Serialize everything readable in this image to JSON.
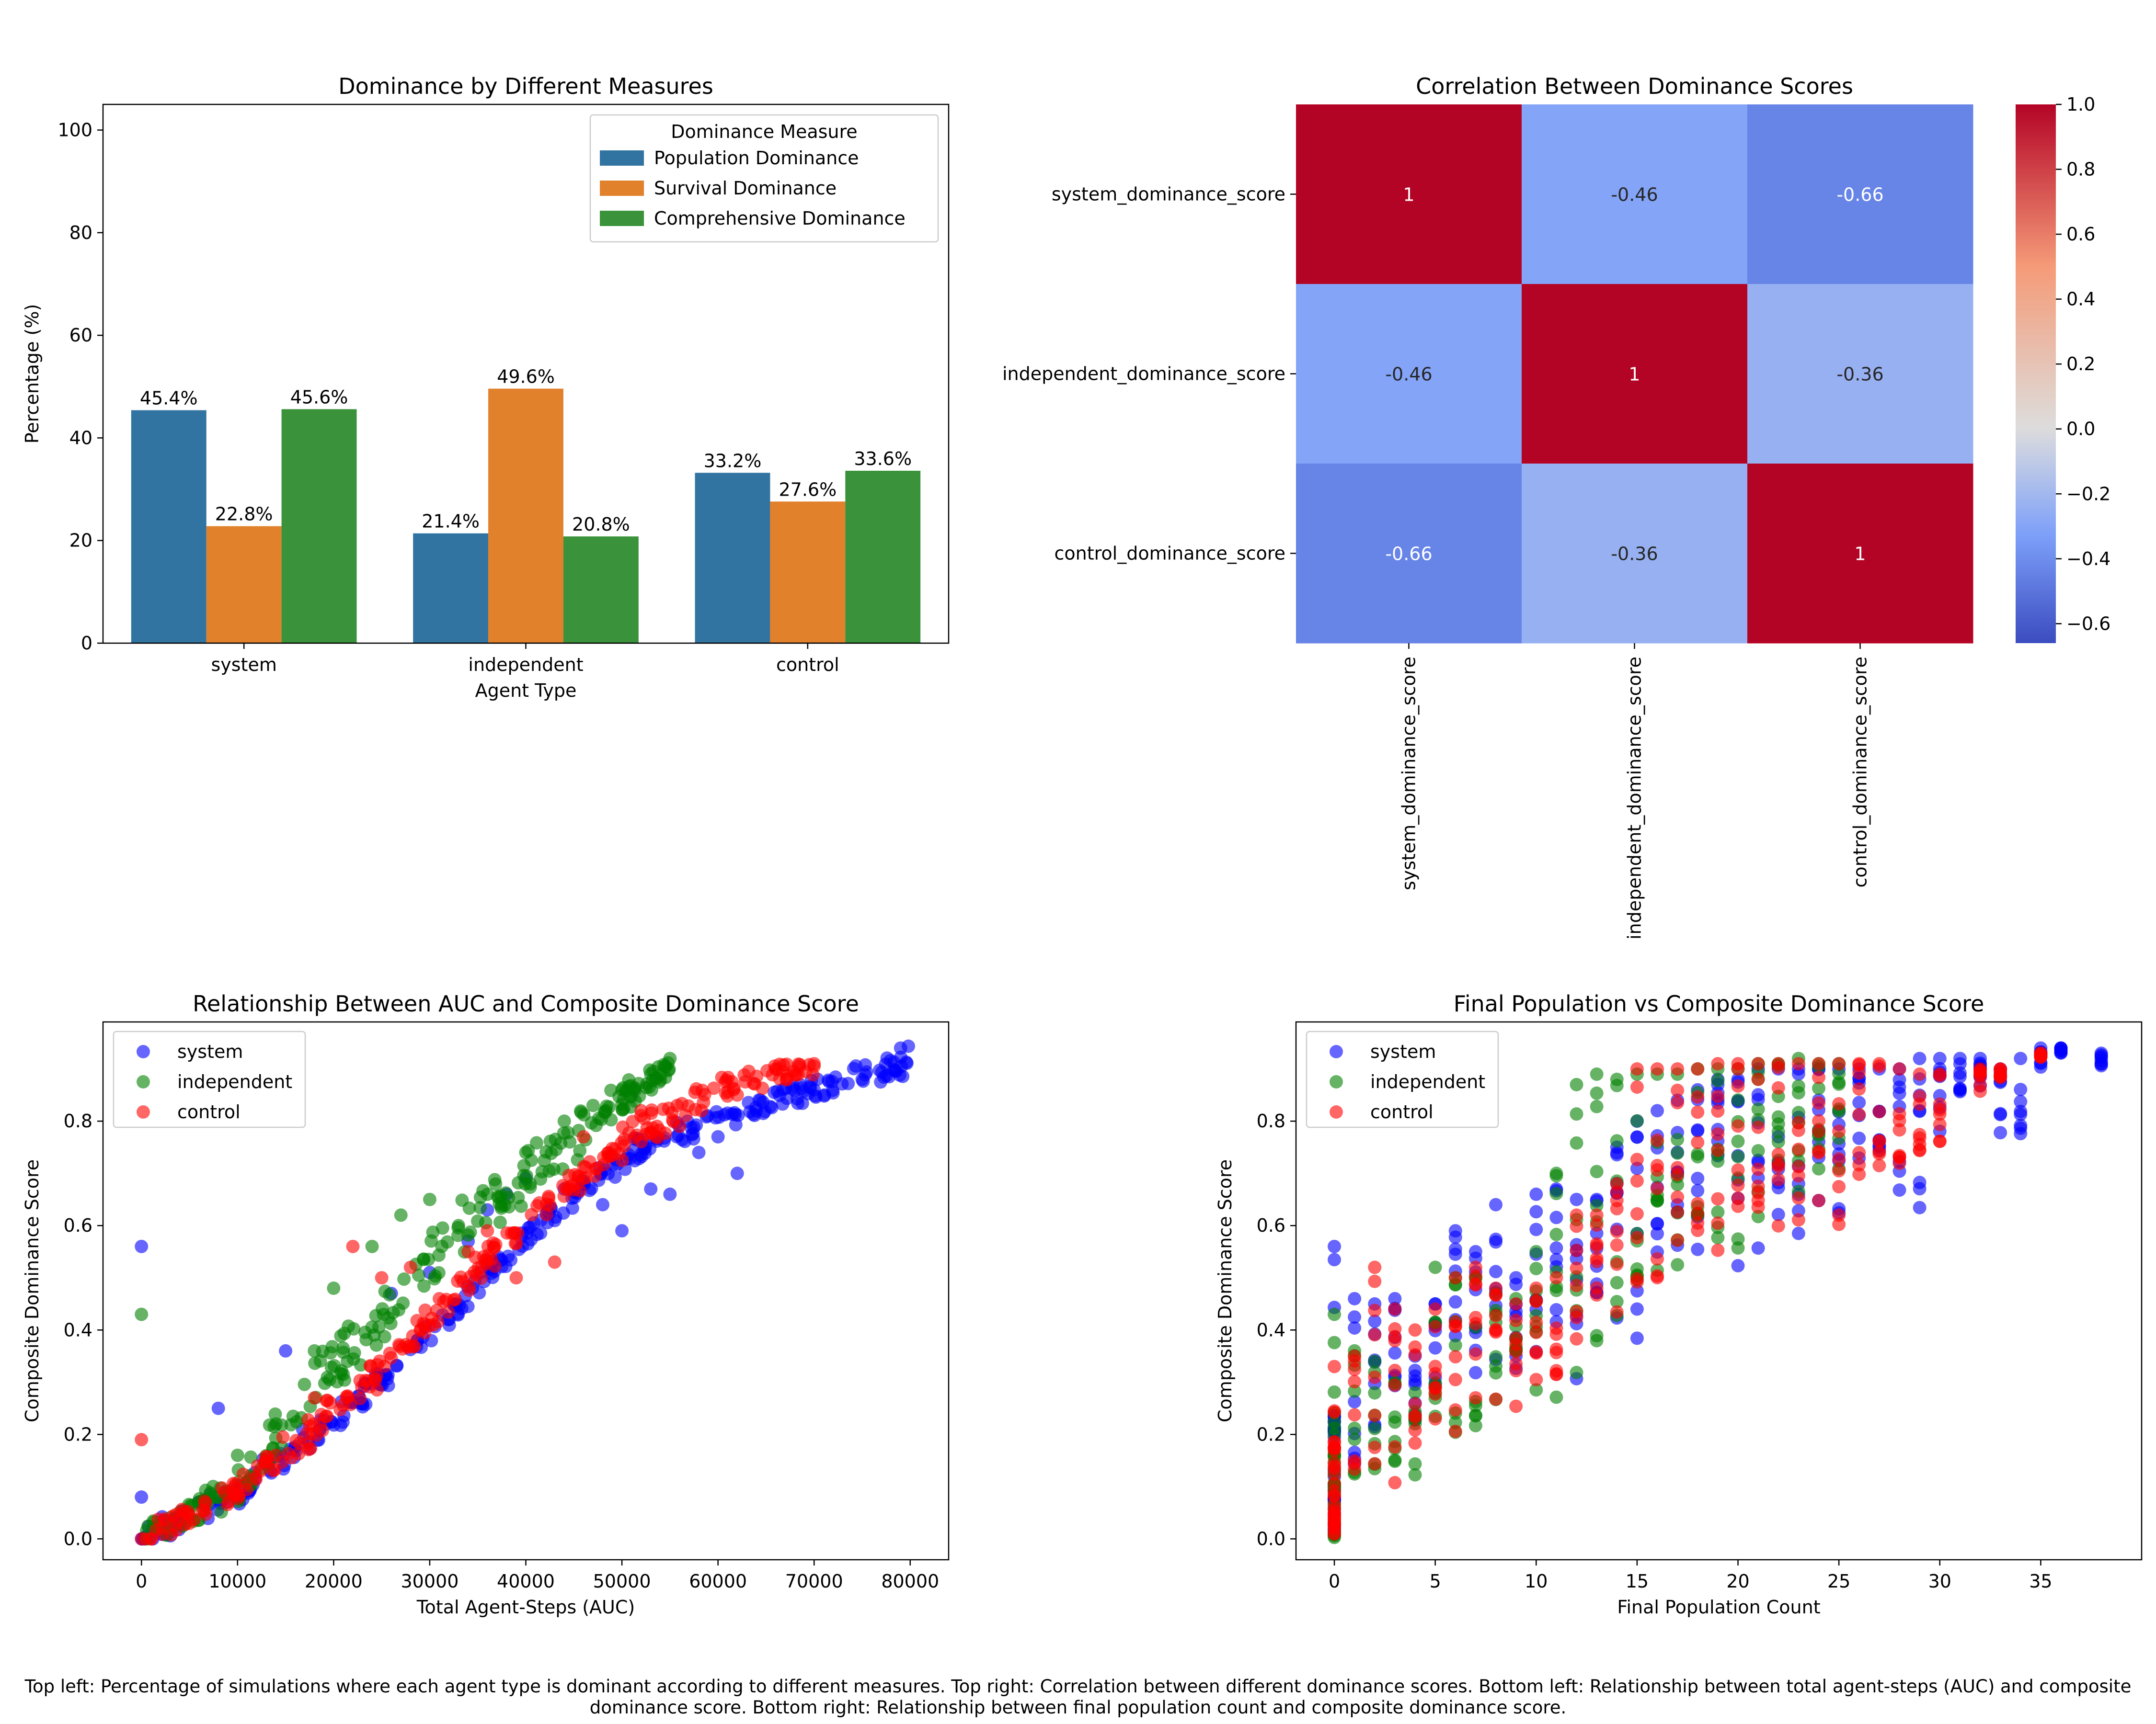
{
  "caption": "Top left: Percentage of simulations where each agent type is dominant according to different measures. Top right: Correlation between different dominance scores. Bottom left: Relationship between total agent-steps (AUC) and composite dominance score. Bottom right: Relationship between final population count and composite dominance score.",
  "chart_data": [
    {
      "type": "bar",
      "title": "Dominance by Different Measures",
      "xlabel": "Agent Type",
      "ylabel": "Percentage (%)",
      "ylim": [
        0,
        105
      ],
      "yticks": [
        0,
        20,
        40,
        60,
        80,
        100
      ],
      "categories": [
        "system",
        "independent",
        "control"
      ],
      "legend": {
        "title": "Dominance Measure",
        "placement": "top-right"
      },
      "series": [
        {
          "name": "Population Dominance",
          "color": "#3274a1",
          "values": [
            45.4,
            21.4,
            33.2
          ],
          "labels": [
            "45.4%",
            "21.4%",
            "33.2%"
          ]
        },
        {
          "name": "Survival Dominance",
          "color": "#e1812c",
          "values": [
            22.8,
            49.6,
            27.6
          ],
          "labels": [
            "22.8%",
            "49.6%",
            "27.6%"
          ]
        },
        {
          "name": "Comprehensive Dominance",
          "color": "#3a923a",
          "values": [
            45.6,
            20.8,
            33.6
          ],
          "labels": [
            "45.6%",
            "20.8%",
            "33.6%"
          ]
        }
      ]
    },
    {
      "type": "heatmap",
      "title": "Correlation Between Dominance Scores",
      "rows": [
        "system_dominance_score",
        "independent_dominance_score",
        "control_dominance_score"
      ],
      "columns": [
        "system_dominance_score",
        "independent_dominance_score",
        "control_dominance_score"
      ],
      "values": [
        [
          1,
          -0.46,
          -0.66
        ],
        [
          -0.46,
          1,
          -0.36
        ],
        [
          -0.66,
          -0.36,
          1
        ]
      ],
      "labels": [
        [
          "1",
          "-0.46",
          "-0.66"
        ],
        [
          "-0.46",
          "1",
          "-0.36"
        ],
        [
          "-0.66",
          "-0.36",
          "1"
        ]
      ],
      "colormap": "coolwarm",
      "colorbar": {
        "range": [
          -0.66,
          1.0
        ],
        "ticks": [
          1.0,
          0.8,
          0.6,
          0.4,
          0.2,
          0.0,
          -0.2,
          -0.4,
          -0.6
        ],
        "tick_labels": [
          "1.0",
          "0.8",
          "0.6",
          "0.4",
          "0.2",
          "0.0",
          "−0.2",
          "−0.4",
          "−0.6"
        ]
      }
    },
    {
      "type": "scatter",
      "title": "Relationship Between AUC and Composite Dominance Score",
      "xlabel": "Total Agent-Steps (AUC)",
      "ylabel": "Composite Dominance Score",
      "xlim": [
        -4000,
        84000
      ],
      "ylim": [
        -0.04,
        0.99
      ],
      "xticks": [
        0,
        10000,
        20000,
        30000,
        40000,
        50000,
        60000,
        70000,
        80000
      ],
      "yticks": [
        0.0,
        0.2,
        0.4,
        0.6,
        0.8
      ],
      "ytick_labels": [
        "0.0",
        "0.2",
        "0.4",
        "0.6",
        "0.8"
      ],
      "legend": {
        "placement": "top-left"
      },
      "series": [
        {
          "name": "system",
          "color": "#0000ff",
          "points": [
            [
              0,
              0.56
            ],
            [
              0,
              0.08
            ],
            [
              8000,
              0.25
            ],
            [
              15000,
              0.36
            ],
            [
              26000,
              0.47
            ],
            [
              30000,
              0.51
            ],
            [
              34000,
              0.57
            ],
            [
              36000,
              0.63
            ],
            [
              38000,
              0.66
            ],
            [
              40000,
              0.69
            ],
            [
              44000,
              0.67
            ],
            [
              48000,
              0.64
            ],
            [
              50000,
              0.59
            ],
            [
              53000,
              0.67
            ],
            [
              55000,
              0.66
            ],
            [
              58000,
              0.74
            ],
            [
              60000,
              0.77
            ],
            [
              62000,
              0.7
            ],
            [
              64000,
              0.82
            ],
            [
              70000,
              0.86
            ],
            [
              75000,
              0.88
            ],
            [
              79000,
              0.94
            ]
          ],
          "bands": [
            [
              0,
              0.0,
              0.004
            ],
            [
              10000,
              0.07,
              0.1
            ],
            [
              20000,
              0.22,
              0.24
            ],
            [
              30000,
              0.38,
              0.4
            ],
            [
              40000,
              0.58,
              0.58
            ],
            [
              50000,
              0.74,
              0.72
            ],
            [
              60000,
              0.81,
              0.8
            ],
            [
              70000,
              0.86,
              0.86
            ],
            [
              80000,
              0.9,
              0.93
            ]
          ]
        },
        {
          "name": "independent",
          "color": "#008000",
          "points": [
            [
              0,
              0.43
            ],
            [
              10000,
              0.16
            ],
            [
              14000,
              0.22
            ],
            [
              18000,
              0.36
            ],
            [
              20000,
              0.48
            ],
            [
              24000,
              0.56
            ],
            [
              27000,
              0.62
            ],
            [
              30000,
              0.65
            ],
            [
              33000,
              0.6
            ],
            [
              36000,
              0.66
            ],
            [
              40000,
              0.74
            ],
            [
              44000,
              0.8
            ],
            [
              47000,
              0.83
            ],
            [
              50000,
              0.86
            ],
            [
              53000,
              0.89
            ],
            [
              55000,
              0.92
            ]
          ],
          "bands": [
            [
              0,
              0.0,
              0.004
            ],
            [
              10000,
              0.08,
              0.12
            ],
            [
              20000,
              0.28,
              0.38
            ],
            [
              30000,
              0.48,
              0.58
            ],
            [
              40000,
              0.65,
              0.74
            ],
            [
              50000,
              0.82,
              0.86
            ],
            [
              55000,
              0.9,
              0.91
            ]
          ]
        },
        {
          "name": "control",
          "color": "#ff0000",
          "points": [
            [
              0,
              0.19
            ],
            [
              14000,
              0.16
            ],
            [
              18000,
              0.27
            ],
            [
              22000,
              0.56
            ],
            [
              25000,
              0.5
            ],
            [
              28000,
              0.52
            ],
            [
              31000,
              0.46
            ],
            [
              34000,
              0.55
            ],
            [
              36000,
              0.59
            ],
            [
              39000,
              0.5
            ],
            [
              43000,
              0.53
            ],
            [
              46000,
              0.77
            ],
            [
              52000,
              0.82
            ],
            [
              56000,
              0.79
            ],
            [
              62000,
              0.85
            ],
            [
              66000,
              0.9
            ],
            [
              70000,
              0.91
            ]
          ],
          "bands": [
            [
              0,
              0.0,
              0.004
            ],
            [
              10000,
              0.08,
              0.1
            ],
            [
              20000,
              0.22,
              0.26
            ],
            [
              30000,
              0.4,
              0.44
            ],
            [
              40000,
              0.6,
              0.62
            ],
            [
              50000,
              0.74,
              0.78
            ],
            [
              60000,
              0.86,
              0.87
            ],
            [
              70000,
              0.9,
              0.91
            ]
          ]
        }
      ]
    },
    {
      "type": "scatter",
      "title": "Final Population vs Composite Dominance Score",
      "xlabel": "Final Population Count",
      "ylabel": "Composite Dominance Score",
      "xlim": [
        -1.9,
        40
      ],
      "ylim": [
        -0.04,
        0.99
      ],
      "xticks": [
        0,
        5,
        10,
        15,
        20,
        25,
        30,
        35
      ],
      "yticks": [
        0.0,
        0.2,
        0.4,
        0.6,
        0.8
      ],
      "ytick_labels": [
        "0.0",
        "0.2",
        "0.4",
        "0.6",
        "0.8"
      ],
      "legend": {
        "placement": "top-left"
      },
      "series": [
        {
          "name": "system",
          "color": "#0000ff",
          "columns": [
            [
              0,
              0.0,
              0.56
            ],
            [
              1,
              0.1,
              0.46
            ],
            [
              2,
              0.2,
              0.45
            ],
            [
              3,
              0.2,
              0.46
            ],
            [
              4,
              0.22,
              0.35
            ],
            [
              5,
              0.25,
              0.45
            ],
            [
              6,
              0.2,
              0.59
            ],
            [
              7,
              0.28,
              0.55
            ],
            [
              8,
              0.3,
              0.64
            ],
            [
              9,
              0.3,
              0.5
            ],
            [
              10,
              0.35,
              0.66
            ],
            [
              11,
              0.38,
              0.67
            ],
            [
              12,
              0.3,
              0.65
            ],
            [
              13,
              0.45,
              0.65
            ],
            [
              14,
              0.42,
              0.75
            ],
            [
              15,
              0.38,
              0.8
            ],
            [
              16,
              0.5,
              0.82
            ],
            [
              17,
              0.45,
              0.84
            ],
            [
              18,
              0.55,
              0.86
            ],
            [
              19,
              0.55,
              0.88
            ],
            [
              20,
              0.5,
              0.88
            ],
            [
              21,
              0.55,
              0.9
            ],
            [
              22,
              0.6,
              0.9
            ],
            [
              23,
              0.58,
              0.9
            ],
            [
              24,
              0.64,
              0.9
            ],
            [
              25,
              0.6,
              0.9
            ],
            [
              26,
              0.64,
              0.9
            ],
            [
              27,
              0.6,
              0.9
            ],
            [
              28,
              0.65,
              0.9
            ],
            [
              29,
              0.63,
              0.92
            ],
            [
              30,
              0.73,
              0.92
            ],
            [
              31,
              0.85,
              0.92
            ],
            [
              32,
              0.86,
              0.92
            ],
            [
              33,
              0.75,
              0.9
            ],
            [
              34,
              0.76,
              0.92
            ],
            [
              35,
              0.9,
              0.94
            ],
            [
              36,
              0.93,
              0.94
            ],
            [
              38,
              0.89,
              0.93
            ]
          ]
        },
        {
          "name": "independent",
          "color": "#008000",
          "columns": [
            [
              0,
              0.0,
              0.43
            ],
            [
              1,
              0.1,
              0.36
            ],
            [
              2,
              0.12,
              0.34
            ],
            [
              3,
              0.12,
              0.3
            ],
            [
              4,
              0.11,
              0.28
            ],
            [
              5,
              0.15,
              0.52
            ],
            [
              6,
              0.17,
              0.5
            ],
            [
              7,
              0.19,
              0.5
            ],
            [
              8,
              0.22,
              0.47
            ],
            [
              9,
              0.24,
              0.46
            ],
            [
              10,
              0.26,
              0.55
            ],
            [
              11,
              0.27,
              0.7
            ],
            [
              12,
              0.3,
              0.87
            ],
            [
              13,
              0.36,
              0.89
            ],
            [
              14,
              0.4,
              0.88
            ],
            [
              15,
              0.45,
              0.89
            ],
            [
              16,
              0.5,
              0.89
            ],
            [
              17,
              0.5,
              0.89
            ],
            [
              18,
              0.55,
              0.9
            ],
            [
              19,
              0.55,
              0.9
            ],
            [
              20,
              0.55,
              0.9
            ],
            [
              21,
              0.56,
              0.91
            ],
            [
              22,
              0.6,
              0.91
            ],
            [
              23,
              0.65,
              0.92
            ],
            [
              24,
              0.65,
              0.91
            ],
            [
              25,
              0.7,
              0.91
            ]
          ]
        },
        {
          "name": "control",
          "color": "#ff0000",
          "columns": [
            [
              0,
              0.0,
              0.33
            ],
            [
              1,
              0.08,
              0.35
            ],
            [
              2,
              0.1,
              0.52
            ],
            [
              3,
              0.1,
              0.44
            ],
            [
              4,
              0.15,
              0.4
            ],
            [
              5,
              0.18,
              0.44
            ],
            [
              6,
              0.2,
              0.5
            ],
            [
              7,
              0.22,
              0.52
            ],
            [
              8,
              0.25,
              0.48
            ],
            [
              9,
              0.25,
              0.45
            ],
            [
              10,
              0.28,
              0.48
            ],
            [
              11,
              0.3,
              0.5
            ],
            [
              12,
              0.35,
              0.62
            ],
            [
              13,
              0.4,
              0.62
            ],
            [
              14,
              0.42,
              0.68
            ],
            [
              15,
              0.48,
              0.9
            ],
            [
              16,
              0.5,
              0.9
            ],
            [
              17,
              0.52,
              0.9
            ],
            [
              18,
              0.52,
              0.9
            ],
            [
              19,
              0.55,
              0.91
            ],
            [
              20,
              0.56,
              0.91
            ],
            [
              21,
              0.58,
              0.91
            ],
            [
              22,
              0.58,
              0.91
            ],
            [
              23,
              0.6,
              0.91
            ],
            [
              24,
              0.62,
              0.91
            ],
            [
              25,
              0.58,
              0.91
            ],
            [
              26,
              0.63,
              0.91
            ],
            [
              27,
              0.65,
              0.91
            ],
            [
              28,
              0.7,
              0.9
            ],
            [
              29,
              0.72,
              0.89
            ],
            [
              30,
              0.74,
              0.89
            ],
            [
              32,
              0.84,
              0.9
            ],
            [
              33,
              0.88,
              0.9
            ],
            [
              35,
              0.92,
              0.93
            ]
          ]
        }
      ]
    }
  ]
}
